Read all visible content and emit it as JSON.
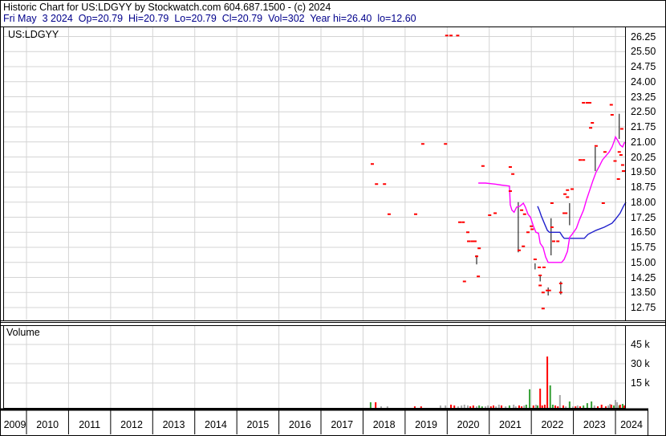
{
  "header": {
    "title": "Historic Chart for US:LDGYY by Stockwatch.com 604.687.1500 - (c) 2024",
    "quote_line": "Fri May  3 2024  Op=20.79  Hi=20.79  Lo=20.79  Cl=20.79  Vol=302  Year hi=26.40  lo=12.60"
  },
  "symbol_label": "US:LDGYY",
  "volume_label": "Volume",
  "colors": {
    "trade_mark": "#ff0000",
    "ma_fast": "#ff00ff",
    "ma_slow": "#2020cc",
    "range_bar": "#000000",
    "vol_up": "#35a035",
    "vol_down": "#ff0000",
    "vol_neutral": "#a8a8a8",
    "grid": "#d4d4d4",
    "border": "#000000",
    "quote_text": "#00008b"
  },
  "chart_data": {
    "type": "scatter",
    "title": "US:LDGYY historic price and volume",
    "price_axis": {
      "ticks": [
        "26.25",
        "25.50",
        "24.75",
        "24.00",
        "23.25",
        "22.50",
        "21.75",
        "21.00",
        "20.25",
        "19.50",
        "18.75",
        "18.00",
        "17.25",
        "16.50",
        "15.75",
        "15.00",
        "14.25",
        "13.50",
        "12.75"
      ],
      "step": 0.75,
      "ylim": [
        12.375,
        26.625
      ]
    },
    "volume_axis": {
      "ticks": [
        "45 k",
        "30 k",
        "15 k"
      ],
      "tick_values_k": [
        45,
        30,
        15
      ]
    },
    "x_axis": {
      "years": [
        "2009",
        "2010",
        "2011",
        "2012",
        "2013",
        "2014",
        "2015",
        "2016",
        "2017",
        "2018",
        "2019",
        "2020",
        "2021",
        "2022",
        "2023",
        "2024"
      ],
      "xlim": [
        2009.45,
        2024.25
      ]
    },
    "trades": [
      [
        2019.99,
        26.3
      ],
      [
        2020.09,
        26.3
      ],
      [
        2020.25,
        26.3
      ],
      [
        2018.22,
        19.9
      ],
      [
        2019.42,
        20.9
      ],
      [
        2019.96,
        20.9
      ],
      [
        2020.85,
        19.8
      ],
      [
        2018.32,
        18.9
      ],
      [
        2018.51,
        18.9
      ],
      [
        2018.62,
        17.4
      ],
      [
        2019.25,
        17.4
      ],
      [
        2020.3,
        17.0
      ],
      [
        2020.38,
        17.0
      ],
      [
        2020.49,
        16.5
      ],
      [
        2020.51,
        16.05
      ],
      [
        2020.59,
        16.05
      ],
      [
        2020.66,
        16.05
      ],
      [
        2020.76,
        15.7
      ],
      [
        2020.7,
        15.3
      ],
      [
        2020.74,
        14.3
      ],
      [
        2020.41,
        14.05
      ],
      [
        2021.5,
        19.75
      ],
      [
        2021.56,
        19.4
      ],
      [
        2021.5,
        18.55
      ],
      [
        2021.01,
        17.35
      ],
      [
        2021.14,
        17.45
      ],
      [
        2021.77,
        17.6
      ],
      [
        2021.84,
        17.4
      ],
      [
        2022.0,
        16.8
      ],
      [
        2021.92,
        16.5
      ],
      [
        2022.02,
        16.65
      ],
      [
        2021.71,
        15.6
      ],
      [
        2021.81,
        15.8
      ],
      [
        2022.49,
        16.75
      ],
      [
        2022.53,
        16.05
      ],
      [
        2022.63,
        16.05
      ],
      [
        2022.8,
        18.4
      ],
      [
        2022.86,
        18.6
      ],
      [
        2022.97,
        18.65
      ],
      [
        2022.82,
        17.45
      ],
      [
        2022.78,
        17.45
      ],
      [
        2022.49,
        17.95
      ],
      [
        2022.86,
        18.25
      ],
      [
        2022.09,
        15.15
      ],
      [
        2022.19,
        14.75
      ],
      [
        2022.3,
        14.75
      ],
      [
        2022.21,
        14.35
      ],
      [
        2022.21,
        13.85
      ],
      [
        2022.28,
        13.5
      ],
      [
        2022.38,
        13.6
      ],
      [
        2022.43,
        13.6
      ],
      [
        2022.7,
        13.95
      ],
      [
        2022.7,
        13.5
      ],
      [
        2022.28,
        12.7
      ],
      [
        2023.24,
        22.95
      ],
      [
        2023.33,
        22.95
      ],
      [
        2023.39,
        22.95
      ],
      [
        2023.9,
        22.85
      ],
      [
        2023.92,
        22.35
      ],
      [
        2023.45,
        21.95
      ],
      [
        2023.41,
        21.7
      ],
      [
        2024.15,
        21.65
      ],
      [
        2023.54,
        20.8
      ],
      [
        2023.75,
        20.5
      ],
      [
        2024.09,
        20.5
      ],
      [
        2024.13,
        20.35
      ],
      [
        2023.16,
        20.1
      ],
      [
        2023.24,
        20.1
      ],
      [
        2023.99,
        20.05
      ],
      [
        2024.17,
        19.85
      ],
      [
        2024.19,
        19.55
      ],
      [
        2024.07,
        19.15
      ],
      [
        2023.71,
        17.95
      ]
    ],
    "range_bars": [
      [
        2020.7,
        15.35,
        14.9
      ],
      [
        2021.69,
        18.0,
        15.5
      ],
      [
        2022.09,
        14.95,
        14.65
      ],
      [
        2022.21,
        14.35,
        14.05
      ],
      [
        2022.4,
        13.75,
        13.35
      ],
      [
        2022.47,
        17.2,
        15.35
      ],
      [
        2022.7,
        14.05,
        13.4
      ],
      [
        2022.91,
        17.95,
        16.85
      ],
      [
        2023.52,
        20.75,
        19.55
      ],
      [
        2024.09,
        22.4,
        21.15
      ]
    ],
    "ma_fast": [
      [
        2020.74,
        18.95
      ],
      [
        2020.91,
        18.95
      ],
      [
        2021.14,
        18.9
      ],
      [
        2021.29,
        18.85
      ],
      [
        2021.48,
        18.8
      ],
      [
        2021.5,
        17.87
      ],
      [
        2021.54,
        17.6
      ],
      [
        2021.59,
        17.5
      ],
      [
        2021.65,
        17.75
      ],
      [
        2021.73,
        17.8
      ],
      [
        2021.81,
        17.95
      ],
      [
        2021.86,
        17.75
      ],
      [
        2021.92,
        17.4
      ],
      [
        2021.98,
        17.25
      ],
      [
        2022.05,
        16.8
      ],
      [
        2022.11,
        16.5
      ],
      [
        2022.17,
        16.45
      ],
      [
        2022.21,
        15.95
      ],
      [
        2022.28,
        15.75
      ],
      [
        2022.34,
        15.27
      ],
      [
        2022.4,
        15.0
      ],
      [
        2022.72,
        15.0
      ],
      [
        2022.78,
        15.15
      ],
      [
        2022.86,
        15.55
      ],
      [
        2022.91,
        16.25
      ],
      [
        2022.97,
        16.4
      ],
      [
        2023.07,
        16.7
      ],
      [
        2023.14,
        17.1
      ],
      [
        2023.24,
        17.6
      ],
      [
        2023.31,
        18.1
      ],
      [
        2023.39,
        18.6
      ],
      [
        2023.47,
        19.1
      ],
      [
        2023.54,
        19.5
      ],
      [
        2023.62,
        19.8
      ],
      [
        2023.69,
        20.1
      ],
      [
        2023.77,
        20.3
      ],
      [
        2023.85,
        20.5
      ],
      [
        2023.92,
        20.75
      ],
      [
        2023.98,
        21.1
      ],
      [
        2024.0,
        21.25
      ],
      [
        2024.06,
        21.05
      ],
      [
        2024.11,
        20.85
      ],
      [
        2024.17,
        20.75
      ],
      [
        2024.21,
        20.95
      ],
      [
        2024.25,
        21.0
      ]
    ],
    "ma_slow": [
      [
        2022.15,
        17.8
      ],
      [
        2022.19,
        17.6
      ],
      [
        2022.24,
        17.3
      ],
      [
        2022.32,
        16.9
      ],
      [
        2022.38,
        16.6
      ],
      [
        2022.43,
        16.5
      ],
      [
        2022.68,
        16.5
      ],
      [
        2022.74,
        16.3
      ],
      [
        2022.78,
        16.2
      ],
      [
        2023.26,
        16.2
      ],
      [
        2023.35,
        16.4
      ],
      [
        2023.54,
        16.6
      ],
      [
        2023.73,
        16.75
      ],
      [
        2023.92,
        16.95
      ],
      [
        2024.0,
        17.15
      ],
      [
        2024.11,
        17.45
      ],
      [
        2024.19,
        17.8
      ],
      [
        2024.25,
        18.0
      ]
    ],
    "volume_bars": [
      [
        2018.18,
        4.4,
        "g"
      ],
      [
        2018.3,
        4.4,
        "r"
      ],
      [
        2018.43,
        1.2,
        "n"
      ],
      [
        2018.58,
        1.2,
        "n"
      ],
      [
        2019.23,
        1.2,
        "r"
      ],
      [
        2019.38,
        1.2,
        "r"
      ],
      [
        2019.84,
        1.9,
        "n"
      ],
      [
        2019.96,
        1.9,
        "n"
      ],
      [
        2020.09,
        2.5,
        "r"
      ],
      [
        2020.17,
        1.9,
        "r"
      ],
      [
        2020.26,
        1.2,
        "n"
      ],
      [
        2020.34,
        1.9,
        "n"
      ],
      [
        2020.41,
        2.5,
        "n"
      ],
      [
        2020.49,
        1.9,
        "n"
      ],
      [
        2020.55,
        1.2,
        "r"
      ],
      [
        2020.62,
        1.9,
        "r"
      ],
      [
        2020.7,
        1.2,
        "n"
      ],
      [
        2020.76,
        1.9,
        "g"
      ],
      [
        2020.83,
        1.2,
        "g"
      ],
      [
        2020.91,
        1.2,
        "n"
      ],
      [
        2020.97,
        1.9,
        "n"
      ],
      [
        2021.04,
        1.2,
        "r"
      ],
      [
        2021.1,
        1.9,
        "r"
      ],
      [
        2021.16,
        1.2,
        "n"
      ],
      [
        2021.23,
        2.5,
        "n"
      ],
      [
        2021.29,
        1.9,
        "r"
      ],
      [
        2021.39,
        1.2,
        "n"
      ],
      [
        2021.48,
        1.9,
        "g"
      ],
      [
        2021.58,
        2.5,
        "n"
      ],
      [
        2021.63,
        1.2,
        "n"
      ],
      [
        2021.71,
        1.9,
        "r"
      ],
      [
        2021.77,
        1.2,
        "r"
      ],
      [
        2021.83,
        1.9,
        "n"
      ],
      [
        2021.88,
        2.5,
        "g"
      ],
      [
        2021.96,
        14.5,
        "g"
      ],
      [
        2022.05,
        1.9,
        "r"
      ],
      [
        2022.11,
        2.5,
        "n"
      ],
      [
        2022.15,
        1.9,
        "g"
      ],
      [
        2022.21,
        15.0,
        "r"
      ],
      [
        2022.26,
        1.9,
        "r"
      ],
      [
        2022.32,
        2.5,
        "r"
      ],
      [
        2022.38,
        40.0,
        "r"
      ],
      [
        2022.45,
        17.5,
        "g"
      ],
      [
        2022.51,
        2.5,
        "g"
      ],
      [
        2022.57,
        1.9,
        "r"
      ],
      [
        2022.63,
        1.2,
        "r"
      ],
      [
        2022.68,
        10.0,
        "n"
      ],
      [
        2022.76,
        1.9,
        "r"
      ],
      [
        2022.82,
        1.2,
        "n"
      ],
      [
        2022.91,
        5.0,
        "g"
      ],
      [
        2022.99,
        1.2,
        "n"
      ],
      [
        2023.05,
        1.2,
        "r"
      ],
      [
        2023.1,
        1.9,
        "n"
      ],
      [
        2023.16,
        1.2,
        "r"
      ],
      [
        2023.24,
        1.9,
        "g"
      ],
      [
        2023.33,
        3.7,
        "g"
      ],
      [
        2023.43,
        5.0,
        "g"
      ],
      [
        2023.5,
        1.9,
        "n"
      ],
      [
        2023.58,
        1.2,
        "r"
      ],
      [
        2023.67,
        2.5,
        "r"
      ],
      [
        2023.77,
        1.2,
        "r"
      ],
      [
        2023.83,
        1.9,
        "n"
      ],
      [
        2023.87,
        3.1,
        "n"
      ],
      [
        2023.9,
        2.5,
        "r"
      ],
      [
        2023.96,
        1.9,
        "g"
      ],
      [
        2024.0,
        6.2,
        "n"
      ],
      [
        2024.04,
        4.4,
        "n"
      ],
      [
        2024.09,
        1.9,
        "g"
      ],
      [
        2024.11,
        2.5,
        "r"
      ],
      [
        2024.17,
        3.1,
        "g"
      ],
      [
        2024.21,
        1.9,
        "r"
      ]
    ]
  }
}
